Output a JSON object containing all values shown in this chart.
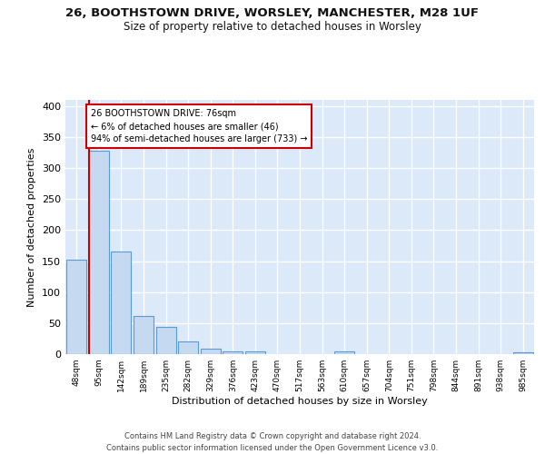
{
  "title_line1": "26, BOOTHSTOWN DRIVE, WORSLEY, MANCHESTER, M28 1UF",
  "title_line2": "Size of property relative to detached houses in Worsley",
  "xlabel": "Distribution of detached houses by size in Worsley",
  "ylabel": "Number of detached properties",
  "categories": [
    "48sqm",
    "95sqm",
    "142sqm",
    "189sqm",
    "235sqm",
    "282sqm",
    "329sqm",
    "376sqm",
    "423sqm",
    "470sqm",
    "517sqm",
    "563sqm",
    "610sqm",
    "657sqm",
    "704sqm",
    "751sqm",
    "798sqm",
    "844sqm",
    "891sqm",
    "938sqm",
    "985sqm"
  ],
  "values": [
    152,
    328,
    165,
    62,
    44,
    21,
    9,
    4,
    4,
    0,
    0,
    0,
    5,
    0,
    0,
    0,
    0,
    0,
    0,
    0,
    3
  ],
  "bar_color": "#c5d9f1",
  "bar_edge_color": "#5b9bd5",
  "background_color": "#dce9f8",
  "grid_color": "#ffffff",
  "vline_color": "#cc0000",
  "annotation_text": "26 BOOTHSTOWN DRIVE: 76sqm\n← 6% of detached houses are smaller (46)\n94% of semi-detached houses are larger (733) →",
  "annotation_box_color": "#ffffff",
  "annotation_box_edge": "#cc0000",
  "footer_text": "Contains HM Land Registry data © Crown copyright and database right 2024.\nContains public sector information licensed under the Open Government Licence v3.0.",
  "ylim": [
    0,
    410
  ],
  "yticks": [
    0,
    50,
    100,
    150,
    200,
    250,
    300,
    350,
    400
  ]
}
